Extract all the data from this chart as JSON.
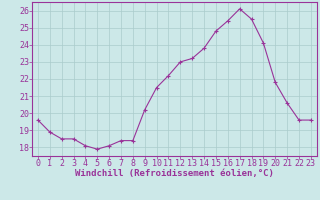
{
  "x": [
    0,
    1,
    2,
    3,
    4,
    5,
    6,
    7,
    8,
    9,
    10,
    11,
    12,
    13,
    14,
    15,
    16,
    17,
    18,
    19,
    20,
    21,
    22,
    23
  ],
  "y": [
    19.6,
    18.9,
    18.5,
    18.5,
    18.1,
    17.9,
    18.1,
    18.4,
    18.4,
    20.2,
    21.5,
    22.2,
    23.0,
    23.2,
    23.8,
    24.8,
    25.4,
    26.1,
    25.5,
    24.1,
    21.8,
    20.6,
    19.6,
    19.6
  ],
  "line_color": "#993399",
  "marker": "+",
  "marker_color": "#993399",
  "bg_color": "#cce8e8",
  "grid_color": "#aacccc",
  "xlabel": "Windchill (Refroidissement éolien,°C)",
  "ylabel": "",
  "ylim": [
    17.5,
    26.5
  ],
  "xlim": [
    -0.5,
    23.5
  ],
  "yticks": [
    18,
    19,
    20,
    21,
    22,
    23,
    24,
    25,
    26
  ],
  "xticks": [
    0,
    1,
    2,
    3,
    4,
    5,
    6,
    7,
    8,
    9,
    10,
    11,
    12,
    13,
    14,
    15,
    16,
    17,
    18,
    19,
    20,
    21,
    22,
    23
  ],
  "tick_label_color": "#993399",
  "axis_color": "#993399",
  "font_size_xlabel": 6.5,
  "font_size_ticks": 6.0
}
